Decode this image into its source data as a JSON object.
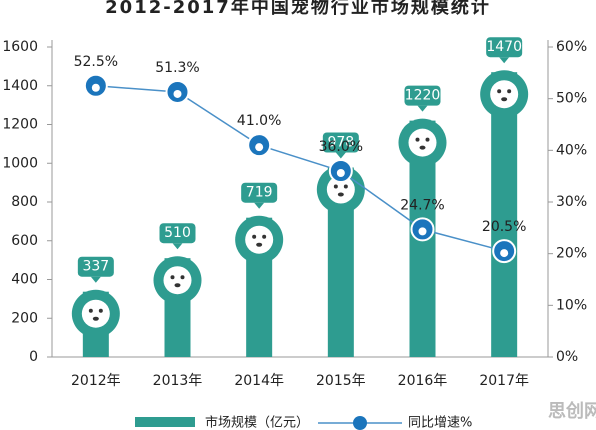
{
  "chart_data": {
    "type": "combo",
    "title": "2012-2017年中国宠物行业市场规模统计",
    "categories": [
      "2012年",
      "2013年",
      "2014年",
      "2015年",
      "2016年",
      "2017年"
    ],
    "series": [
      {
        "name": "市场规模（亿元）",
        "type": "bar",
        "color": "#2e9c90",
        "values": [
          337,
          510,
          719,
          978,
          1220,
          1470
        ]
      },
      {
        "name": "同比增速%",
        "type": "line",
        "axis": "y2",
        "color": "#1b75bc",
        "values": [
          52.5,
          51.3,
          41.0,
          36.0,
          24.7,
          20.5
        ],
        "value_labels": [
          "52.5%",
          "51.3%",
          "41.0%",
          "36.0%",
          "24.7%",
          "20.5%"
        ]
      }
    ],
    "ylim": [
      0,
      1600
    ],
    "yticks": [
      0,
      200,
      400,
      600,
      800,
      1000,
      1200,
      1400,
      1600
    ],
    "y2lim": [
      0,
      60
    ],
    "y2ticks": [
      {
        "value": 0,
        "label": "0%"
      },
      {
        "value": 10,
        "label": "10%"
      },
      {
        "value": 20,
        "label": "20%"
      },
      {
        "value": 30,
        "label": "30%"
      },
      {
        "value": 40,
        "label": "40%"
      },
      {
        "value": 50,
        "label": "50%"
      },
      {
        "value": 60,
        "label": "60%"
      }
    ],
    "watermark": "思创网"
  }
}
